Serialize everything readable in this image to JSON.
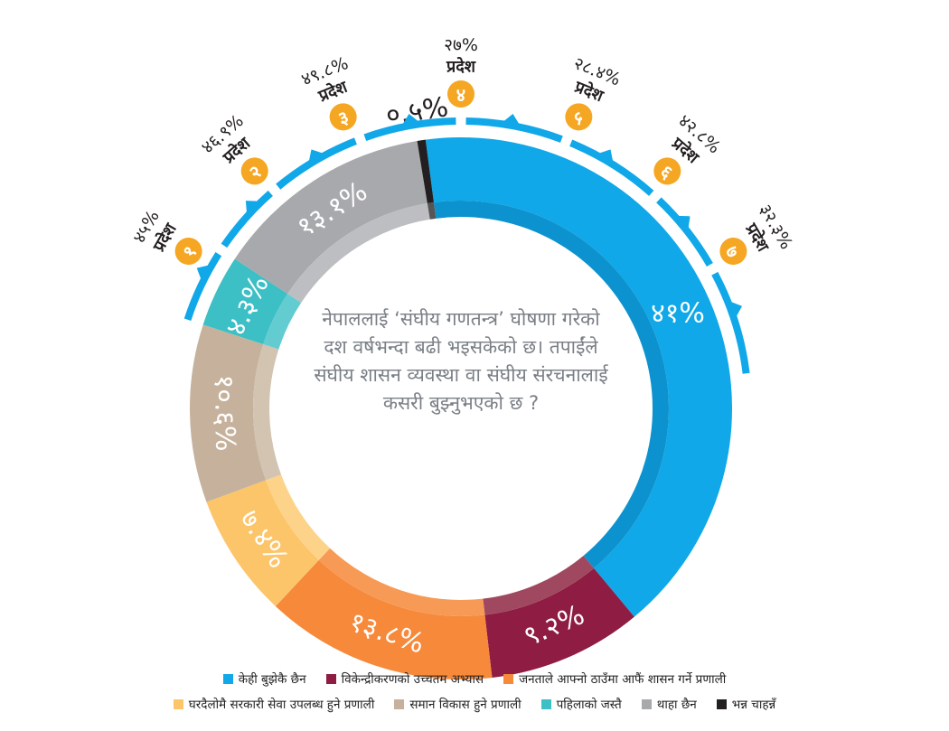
{
  "chart_data": {
    "type": "donut",
    "question": "नेपाललाई ‘संघीय गणतन्त्र’ घोषणा गरेको दश वर्षभन्दा बढी भइसकेको छ। तपाईंले संघीय शासन व्यवस्था वा संघीय संरचनालाई कसरी बुझ्नुभएको छ ?",
    "slices": [
      {
        "name": "केही बुझेकै छैन",
        "value": 41,
        "label": "४१%",
        "color": "#10a8e8",
        "inner": "#0c93cf"
      },
      {
        "name": "विकेन्द्रीकरणको उच्चतम अभ्यास",
        "value": 9.2,
        "label": "९.२%",
        "color": "#8e1c43",
        "inner": "#a0485f"
      },
      {
        "name": "जनताले आफ्नो ठाउँमा आफैं शासन गर्ने प्रणाली",
        "value": 13.8,
        "label": "१३.८%",
        "color": "#f6893a",
        "inner": "#f79a55"
      },
      {
        "name": "घरदैलोमै सरकारी सेवा उपलब्ध हुने प्रणाली",
        "value": 7.4,
        "label": "७.४%",
        "color": "#fcc56a",
        "inner": "#fdd38a"
      },
      {
        "name": "समान विकास हुने प्रणाली",
        "value": 10.6,
        "label": "१०.६%",
        "color": "#c6b29c",
        "inner": "#d3c3b1"
      },
      {
        "name": "पहिलाको जस्तै",
        "value": 4.3,
        "label": "४.३%",
        "color": "#3dbfc6",
        "inner": "#62ccd1"
      },
      {
        "name": "थाहा छैन",
        "value": 13.1,
        "label": "१३.१%",
        "color": "#a8a9ad",
        "inner": "#bdbec1"
      },
      {
        "name": "भन्न चाहन्नँ",
        "value": 0.5,
        "label": "०.५%",
        "color": "#231f20",
        "inner": "#555555"
      }
    ],
    "provinces": [
      {
        "name": "प्रदेश",
        "number": "१",
        "value": 45,
        "label": "४५%"
      },
      {
        "name": "प्रदेश",
        "number": "२",
        "value": 46.9,
        "label": "४६.९%"
      },
      {
        "name": "प्रदेश",
        "number": "३",
        "value": 49.8,
        "label": "४९.८%"
      },
      {
        "name": "प्रदेश",
        "number": "४",
        "value": 27,
        "label": "२७%"
      },
      {
        "name": "प्रदेश",
        "number": "५",
        "value": 28.4,
        "label": "२८.४%"
      },
      {
        "name": "प्रदेश",
        "number": "६",
        "value": 42.8,
        "label": "४२.८%"
      },
      {
        "name": "प्रदेश",
        "number": "७",
        "value": 32.3,
        "label": "३२.३%"
      }
    ],
    "legend_placement": "bottom",
    "colors": {
      "province_badge": "#f5a623",
      "arc": "#10a8e8"
    }
  }
}
